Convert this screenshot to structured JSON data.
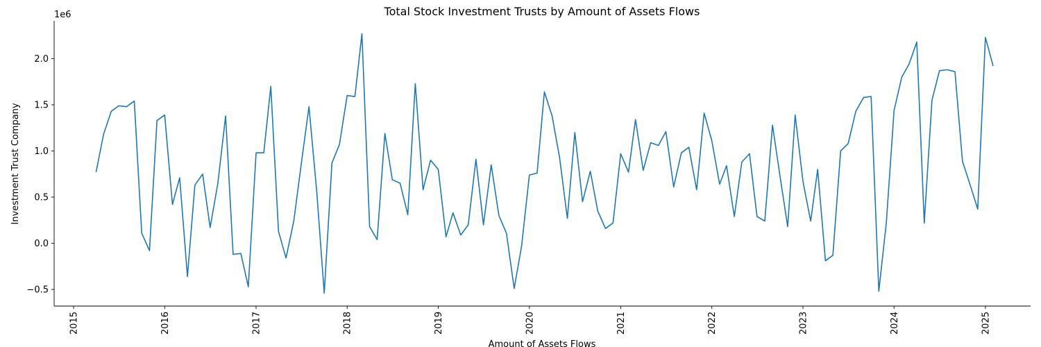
{
  "chart_data": {
    "type": "line",
    "title": "Total Stock Investment Trusts by Amount of Assets Flows",
    "xlabel": "Amount of Assets Flows",
    "ylabel": "Investment Trust Company",
    "y_offset_label": "1e6",
    "x_ticks": [
      "2015",
      "2016",
      "2017",
      "2018",
      "2019",
      "2020",
      "2021",
      "2022",
      "2023",
      "2024",
      "2025"
    ],
    "y_ticks": [
      "−0.5",
      "0.0",
      "0.5",
      "1.0",
      "1.5",
      "2.0"
    ],
    "y_tick_values": [
      -500000,
      0,
      500000,
      1000000,
      1500000,
      2000000
    ],
    "xlim": [
      "2014-10-15",
      "2025-07-01"
    ],
    "ylim": [
      -680000,
      2410000
    ],
    "grid": false,
    "series": [
      {
        "color": "#1f77b4",
        "points": [
          [
            "2015-04-01",
            770000
          ],
          [
            "2015-05-01",
            1180000
          ],
          [
            "2015-06-01",
            1430000
          ],
          [
            "2015-07-01",
            1490000
          ],
          [
            "2015-08-01",
            1480000
          ],
          [
            "2015-09-01",
            1540000
          ],
          [
            "2015-10-01",
            110000
          ],
          [
            "2015-11-01",
            -80000
          ],
          [
            "2015-12-01",
            1330000
          ],
          [
            "2016-01-01",
            1390000
          ],
          [
            "2016-02-01",
            420000
          ],
          [
            "2016-03-01",
            710000
          ],
          [
            "2016-04-01",
            -360000
          ],
          [
            "2016-05-01",
            630000
          ],
          [
            "2016-06-01",
            750000
          ],
          [
            "2016-07-01",
            170000
          ],
          [
            "2016-08-01",
            650000
          ],
          [
            "2016-09-01",
            1380000
          ],
          [
            "2016-10-01",
            -120000
          ],
          [
            "2016-11-01",
            -110000
          ],
          [
            "2016-12-01",
            -470000
          ],
          [
            "2017-01-01",
            980000
          ],
          [
            "2017-02-01",
            980000
          ],
          [
            "2017-03-01",
            1700000
          ],
          [
            "2017-04-01",
            130000
          ],
          [
            "2017-05-01",
            -160000
          ],
          [
            "2017-06-01",
            240000
          ],
          [
            "2017-07-01",
            860000
          ],
          [
            "2017-08-01",
            1480000
          ],
          [
            "2017-09-01",
            560000
          ],
          [
            "2017-10-01",
            -540000
          ],
          [
            "2017-11-01",
            870000
          ],
          [
            "2017-12-01",
            1070000
          ],
          [
            "2018-01-01",
            1600000
          ],
          [
            "2018-02-01",
            1590000
          ],
          [
            "2018-03-01",
            2270000
          ],
          [
            "2018-04-01",
            180000
          ],
          [
            "2018-05-01",
            40000
          ],
          [
            "2018-06-01",
            1190000
          ],
          [
            "2018-07-01",
            690000
          ],
          [
            "2018-08-01",
            650000
          ],
          [
            "2018-09-01",
            310000
          ],
          [
            "2018-10-01",
            1730000
          ],
          [
            "2018-11-01",
            580000
          ],
          [
            "2018-12-01",
            900000
          ],
          [
            "2019-01-01",
            800000
          ],
          [
            "2019-02-01",
            70000
          ],
          [
            "2019-03-01",
            330000
          ],
          [
            "2019-04-01",
            90000
          ],
          [
            "2019-05-01",
            200000
          ],
          [
            "2019-06-01",
            910000
          ],
          [
            "2019-07-01",
            200000
          ],
          [
            "2019-08-01",
            850000
          ],
          [
            "2019-09-01",
            300000
          ],
          [
            "2019-10-01",
            110000
          ],
          [
            "2019-11-01",
            -490000
          ],
          [
            "2019-12-01",
            -30000
          ],
          [
            "2020-01-01",
            740000
          ],
          [
            "2020-02-01",
            760000
          ],
          [
            "2020-03-01",
            1640000
          ],
          [
            "2020-04-01",
            1380000
          ],
          [
            "2020-05-01",
            930000
          ],
          [
            "2020-06-01",
            270000
          ],
          [
            "2020-07-01",
            1200000
          ],
          [
            "2020-08-01",
            450000
          ],
          [
            "2020-09-01",
            780000
          ],
          [
            "2020-10-01",
            350000
          ],
          [
            "2020-11-01",
            160000
          ],
          [
            "2020-12-01",
            220000
          ],
          [
            "2021-01-01",
            970000
          ],
          [
            "2021-02-01",
            770000
          ],
          [
            "2021-03-01",
            1340000
          ],
          [
            "2021-04-01",
            790000
          ],
          [
            "2021-05-01",
            1090000
          ],
          [
            "2021-06-01",
            1060000
          ],
          [
            "2021-07-01",
            1210000
          ],
          [
            "2021-08-01",
            610000
          ],
          [
            "2021-09-01",
            980000
          ],
          [
            "2021-10-01",
            1040000
          ],
          [
            "2021-11-01",
            580000
          ],
          [
            "2021-12-01",
            1410000
          ],
          [
            "2022-01-01",
            1110000
          ],
          [
            "2022-02-01",
            640000
          ],
          [
            "2022-03-01",
            840000
          ],
          [
            "2022-04-01",
            290000
          ],
          [
            "2022-05-01",
            880000
          ],
          [
            "2022-06-01",
            970000
          ],
          [
            "2022-07-01",
            290000
          ],
          [
            "2022-08-01",
            240000
          ],
          [
            "2022-09-01",
            1280000
          ],
          [
            "2022-10-01",
            730000
          ],
          [
            "2022-11-01",
            180000
          ],
          [
            "2022-12-01",
            1390000
          ],
          [
            "2023-01-01",
            670000
          ],
          [
            "2023-02-01",
            240000
          ],
          [
            "2023-03-01",
            800000
          ],
          [
            "2023-04-01",
            -190000
          ],
          [
            "2023-05-01",
            -130000
          ],
          [
            "2023-06-01",
            1000000
          ],
          [
            "2023-07-01",
            1080000
          ],
          [
            "2023-08-01",
            1430000
          ],
          [
            "2023-09-01",
            1580000
          ],
          [
            "2023-10-01",
            1590000
          ],
          [
            "2023-11-01",
            -520000
          ],
          [
            "2023-12-01",
            220000
          ],
          [
            "2024-01-01",
            1440000
          ],
          [
            "2024-02-01",
            1800000
          ],
          [
            "2024-03-01",
            1940000
          ],
          [
            "2024-04-01",
            2180000
          ],
          [
            "2024-05-01",
            220000
          ],
          [
            "2024-06-01",
            1550000
          ],
          [
            "2024-07-01",
            1870000
          ],
          [
            "2024-08-01",
            1880000
          ],
          [
            "2024-09-01",
            1860000
          ],
          [
            "2024-10-01",
            890000
          ],
          [
            "2024-11-01",
            630000
          ],
          [
            "2024-12-01",
            370000
          ],
          [
            "2025-01-01",
            2230000
          ],
          [
            "2025-02-01",
            1920000
          ]
        ]
      }
    ]
  }
}
